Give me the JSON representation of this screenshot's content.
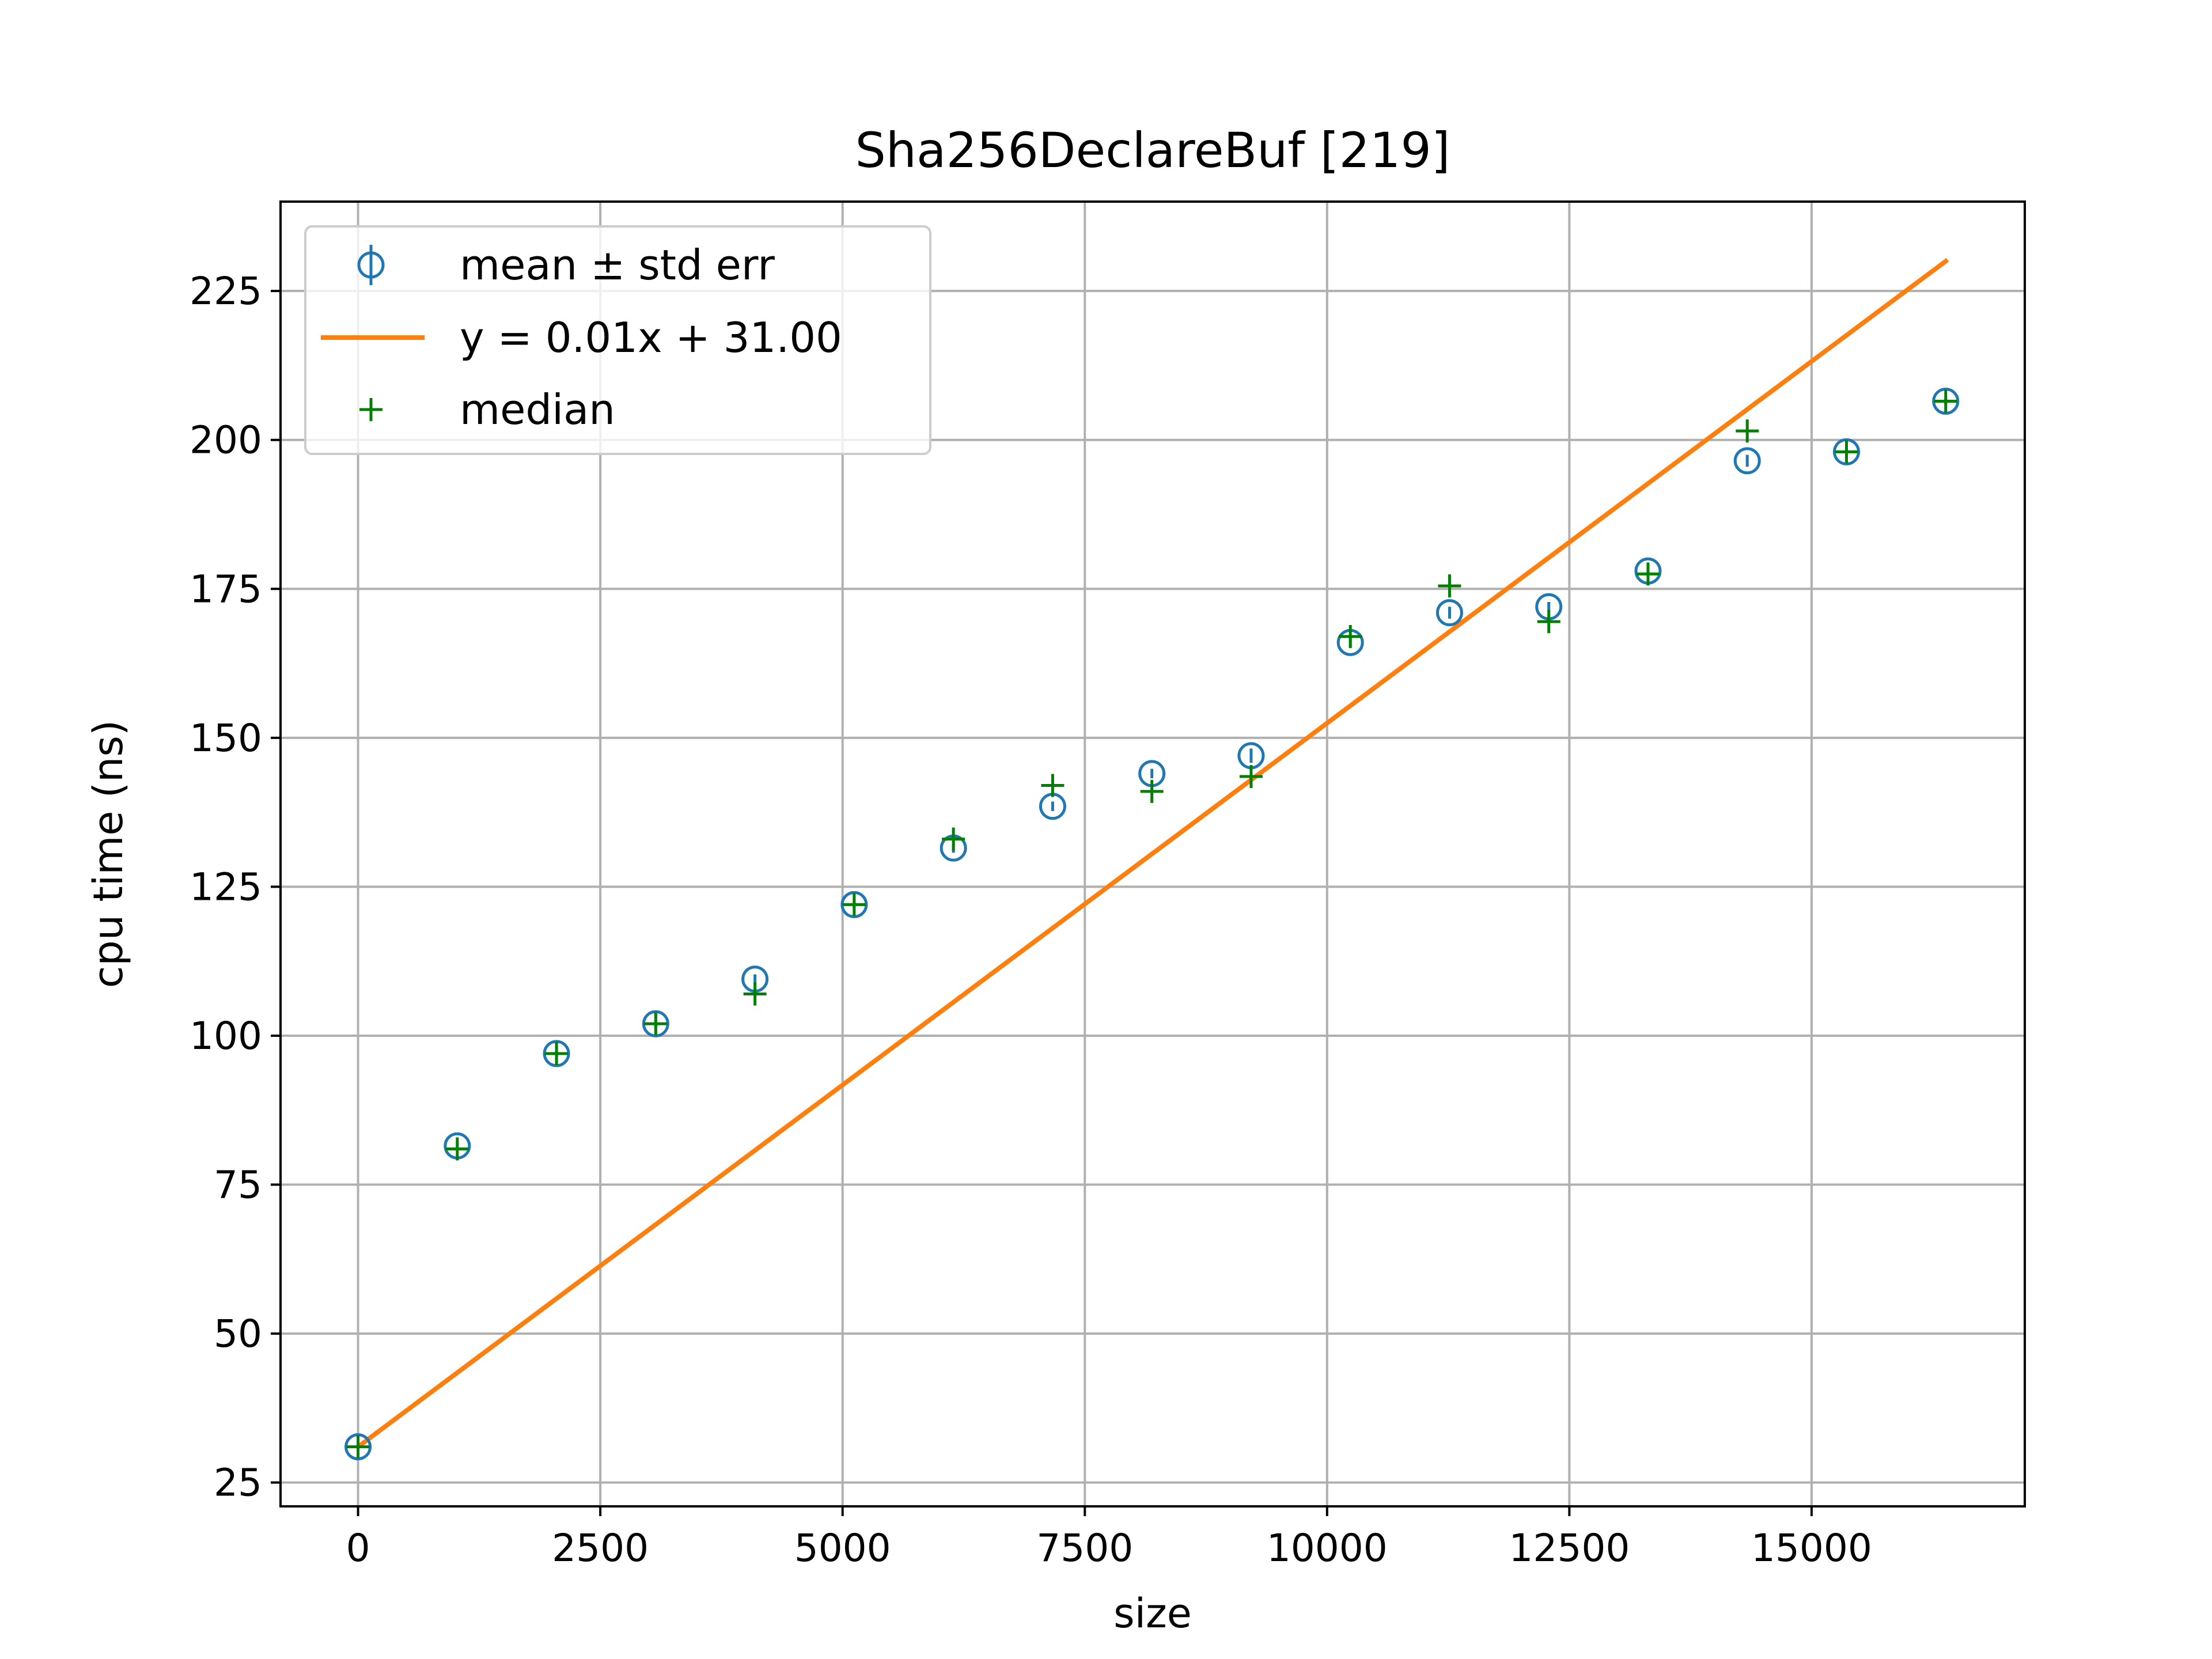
{
  "chart_data": {
    "type": "scatter",
    "title": "Sha256DeclareBuf [219]",
    "xlabel": "size",
    "ylabel": "cpu time (ns)",
    "xlim": [
      -800,
      17200
    ],
    "ylim": [
      21,
      240
    ],
    "x_ticks": [
      0,
      2500,
      5000,
      7500,
      10000,
      12500,
      15000
    ],
    "y_ticks": [
      25,
      50,
      75,
      100,
      125,
      150,
      175,
      200,
      225
    ],
    "grid": true,
    "legend_position": "top-left",
    "colors": {
      "mean": "#1f77b4",
      "fit": "#ff7f0e",
      "median": "#008000",
      "grid": "#b0b0b0"
    },
    "series": [
      {
        "name": "mean ± std err",
        "kind": "errorbar",
        "x": [
          0,
          1024,
          2048,
          3072,
          4096,
          5120,
          6144,
          7168,
          8192,
          9216,
          10240,
          11264,
          12288,
          13312,
          14336,
          15360,
          16384
        ],
        "y": [
          31,
          81.5,
          97,
          102,
          109.5,
          122,
          131.5,
          138.5,
          144,
          147,
          166,
          171,
          172,
          178,
          196.5,
          198,
          206.5
        ],
        "yerr": [
          0.3,
          0.5,
          0.5,
          0.5,
          0.8,
          0.5,
          0.8,
          0.8,
          0.8,
          1.2,
          0.8,
          1.0,
          0.8,
          0.8,
          1.0,
          0.5,
          0.5
        ]
      },
      {
        "name": "y = 0.01x + 31.00",
        "kind": "line",
        "x": [
          0,
          16384
        ],
        "y": [
          31.0,
          230.0
        ]
      },
      {
        "name": "median",
        "kind": "marker",
        "x": [
          0,
          1024,
          2048,
          3072,
          4096,
          5120,
          6144,
          7168,
          8192,
          9216,
          10240,
          11264,
          12288,
          13312,
          14336,
          15360,
          16384
        ],
        "y": [
          31,
          81,
          97,
          102,
          107,
          122,
          133,
          142,
          141,
          143.5,
          167,
          175.5,
          169.5,
          177.5,
          201.5,
          198,
          206.5
        ]
      }
    ]
  }
}
